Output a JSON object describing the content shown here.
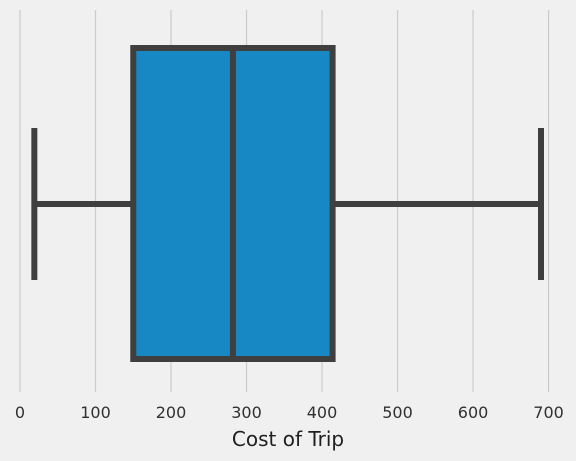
{
  "chart_data": {
    "type": "boxplot",
    "orientation": "horizontal",
    "title": "",
    "xlabel": "Cost of Trip",
    "ylabel": "",
    "xlim": [
      -20,
      715
    ],
    "xticks": [
      0,
      100,
      200,
      300,
      400,
      500,
      600,
      700
    ],
    "grid": "vertical",
    "box": {
      "whisker_low": 19,
      "q1": 150,
      "median": 282,
      "q3": 414,
      "whisker_high": 690
    },
    "colors": {
      "background": "#f0f0f0",
      "box_fill": "#1788c3",
      "lines": "#3f3f3f",
      "grid": "#cbcbcb"
    }
  }
}
